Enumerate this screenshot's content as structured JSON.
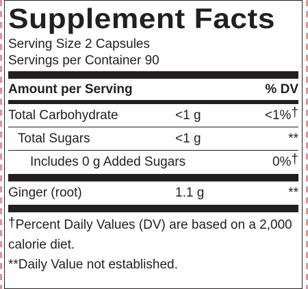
{
  "title": "Supplement Facts",
  "serving_size": "Serving Size 2 Capsules",
  "servings_per_container": "Servings per Container 90",
  "header": {
    "amount_label": "Amount per Serving",
    "dv_label": "% DV"
  },
  "nutrients": [
    {
      "name": "Total Carbohydrate",
      "amount": "<1 g",
      "dv": "<1%",
      "dv_mark": "†"
    },
    {
      "name": "Total Sugars",
      "amount": "<1 g",
      "dv": "**",
      "dv_mark": ""
    },
    {
      "name": "Includes 0 g Added Sugars",
      "amount": "",
      "dv": "0%",
      "dv_mark": "†"
    }
  ],
  "ingredients": [
    {
      "name": "Ginger (root)",
      "amount": "1.1 g",
      "dv": "**"
    }
  ],
  "footnotes": {
    "dagger_mark": "†",
    "dagger_text": "Percent Daily Values (DV) are based on a 2,000 calorie diet.",
    "double_star": "**Daily Value not established."
  }
}
